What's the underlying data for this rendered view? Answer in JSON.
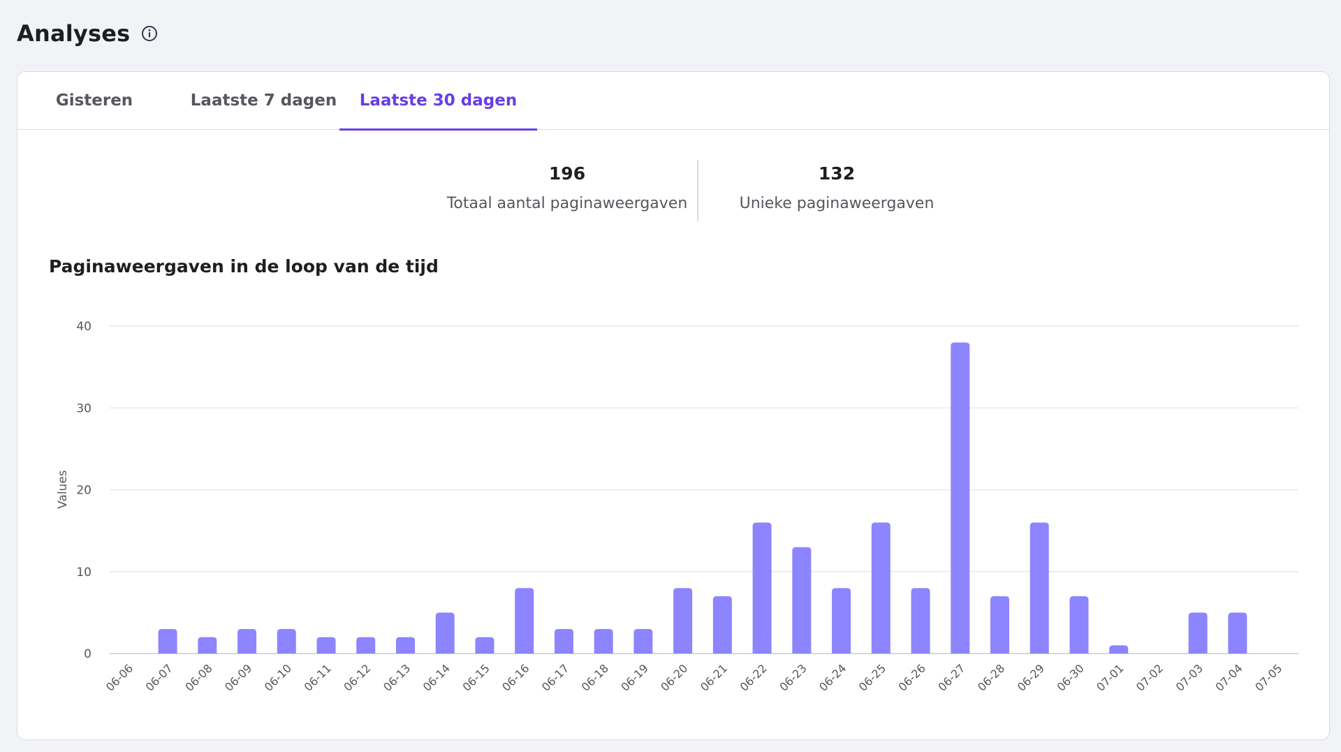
{
  "header": {
    "title": "Analyses",
    "info_icon": "info-circle-icon"
  },
  "tabs": [
    {
      "label": "Gisteren",
      "active": false
    },
    {
      "label": "Laatste 7 dagen",
      "active": false
    },
    {
      "label": "Laatste 30 dagen",
      "active": true
    }
  ],
  "stats": [
    {
      "value": "196",
      "label": "Totaal aantal paginaweergaven"
    },
    {
      "value": "132",
      "label": "Unieke paginaweergaven"
    }
  ],
  "chart": {
    "title": "Paginaweergaven in de loop van de tijd"
  },
  "colors": {
    "accent": "#673de6",
    "bar": "#8c85ff",
    "grid": "#e3e4e8"
  },
  "chart_data": {
    "type": "bar",
    "title": "Paginaweergaven in de loop van de tijd",
    "xlabel": "",
    "ylabel": "Values",
    "ylim": [
      0,
      40
    ],
    "yticks": [
      0,
      10,
      20,
      30,
      40
    ],
    "grid": true,
    "categories": [
      "06-06",
      "06-07",
      "06-08",
      "06-09",
      "06-10",
      "06-11",
      "06-12",
      "06-13",
      "06-14",
      "06-15",
      "06-16",
      "06-17",
      "06-18",
      "06-19",
      "06-20",
      "06-21",
      "06-22",
      "06-23",
      "06-24",
      "06-25",
      "06-26",
      "06-27",
      "06-28",
      "06-29",
      "06-30",
      "07-01",
      "07-02",
      "07-03",
      "07-04",
      "07-05"
    ],
    "values": [
      0,
      3,
      2,
      3,
      3,
      2,
      2,
      2,
      5,
      2,
      8,
      3,
      3,
      3,
      8,
      7,
      16,
      13,
      8,
      16,
      8,
      38,
      7,
      16,
      7,
      1,
      0,
      5,
      5,
      0
    ]
  }
}
